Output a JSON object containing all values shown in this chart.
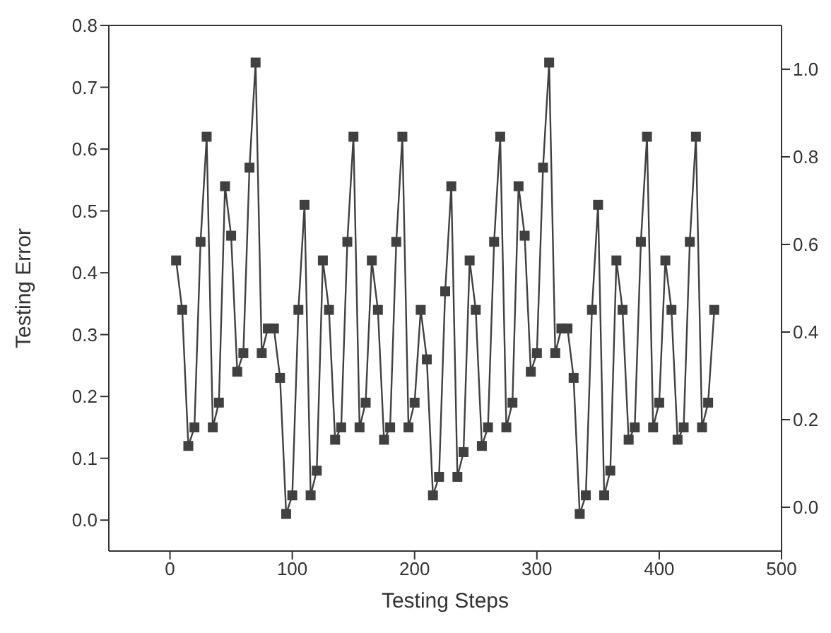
{
  "chart_data": {
    "type": "line",
    "xlabel": "Testing Steps",
    "ylabel": "Testing Error",
    "marker": "square",
    "line_style": "solid",
    "grid": false,
    "legend": false,
    "xlim": [
      -50,
      500
    ],
    "xticks": [
      0,
      100,
      200,
      300,
      400,
      500
    ],
    "ylim": [
      -0.05,
      0.8
    ],
    "yticks": [
      {
        "value": 0,
        "label": "0.0"
      },
      0.1,
      0.2,
      0.3,
      0.4,
      0.5,
      0.6,
      0.7,
      0.8
    ],
    "y2lim": [
      -0.1,
      1.1
    ],
    "y2ticks": [
      {
        "value": 0,
        "label": "0.0"
      },
      0.2,
      0.4,
      0.6,
      0.8,
      {
        "value": 1,
        "label": "1.0"
      }
    ],
    "series": [
      {
        "color": "#404040",
        "x": [
          5,
          10,
          15,
          20,
          25,
          30,
          35,
          40,
          45,
          50,
          55,
          60,
          65,
          70,
          75,
          80,
          85,
          90,
          95,
          100,
          105,
          110,
          115,
          120,
          125,
          130,
          135,
          140,
          145,
          150,
          155,
          160,
          165,
          170,
          175,
          180,
          185,
          190,
          195,
          200,
          205,
          210,
          215,
          220,
          225,
          230,
          235,
          240,
          245,
          250,
          255,
          260,
          265,
          270,
          275,
          280,
          285,
          290,
          295,
          300,
          305,
          310,
          315,
          320,
          325,
          330,
          335,
          340,
          345,
          350,
          355,
          360,
          365,
          370,
          375,
          380,
          385,
          390,
          395,
          400,
          405,
          410,
          415,
          420,
          425,
          430,
          435,
          440,
          445
        ],
        "values": [
          0.42,
          0.34,
          0.12,
          0.15,
          0.45,
          0.62,
          0.15,
          0.19,
          0.54,
          0.46,
          0.24,
          0.27,
          0.57,
          0.74,
          0.27,
          0.31,
          0.31,
          0.23,
          0.01,
          0.04,
          0.34,
          0.51,
          0.04,
          0.08,
          0.42,
          0.34,
          0.13,
          0.15,
          0.45,
          0.62,
          0.15,
          0.19,
          0.42,
          0.34,
          0.13,
          0.15,
          0.45,
          0.62,
          0.15,
          0.19,
          0.34,
          0.26,
          0.04,
          0.07,
          0.37,
          0.54,
          0.07,
          0.11,
          0.42,
          0.34,
          0.12,
          0.15,
          0.45,
          0.62,
          0.15,
          0.19,
          0.54,
          0.46,
          0.24,
          0.27,
          0.57,
          0.74,
          0.27,
          0.31,
          0.31,
          0.23,
          0.01,
          0.04,
          0.34,
          0.51,
          0.04,
          0.08,
          0.42,
          0.34,
          0.13,
          0.15,
          0.45,
          0.62,
          0.15,
          0.19,
          0.42,
          0.34,
          0.13,
          0.15,
          0.45,
          0.62,
          0.15,
          0.19,
          0.34
        ]
      }
    ]
  }
}
